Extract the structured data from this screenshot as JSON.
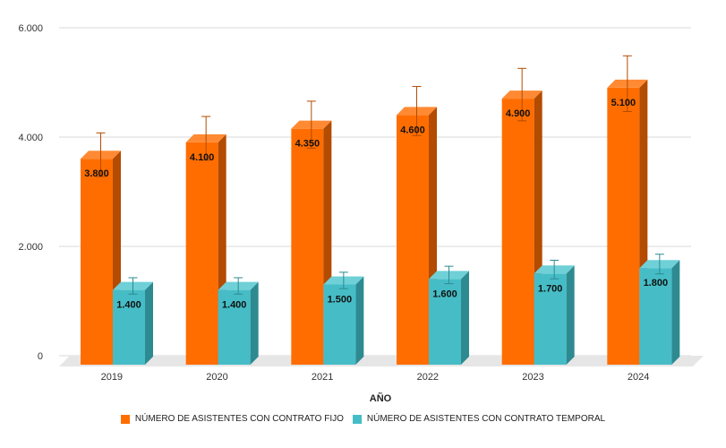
{
  "chart_data": {
    "type": "bar",
    "categories": [
      "2019",
      "2020",
      "2021",
      "2022",
      "2023",
      "2024"
    ],
    "series": [
      {
        "name": "NÚMERO DE ASISTENTES CON CONTRATO FIJO",
        "values": [
          3800,
          4100,
          4350,
          4600,
          4900,
          5100
        ],
        "labels": [
          "3.800",
          "4.100",
          "4.350",
          "4.600",
          "4.900",
          "5.100"
        ],
        "error": [
          400,
          400,
          430,
          450,
          480,
          510
        ],
        "color": "#ff6d01",
        "side_color": "#b34b00",
        "top_color": "#ff8a33"
      },
      {
        "name": "NÚMERO DE ASISTENTES CON CONTRATO TEMPORAL",
        "values": [
          1400,
          1400,
          1500,
          1600,
          1700,
          1800
        ],
        "labels": [
          "1.400",
          "1.400",
          "1.500",
          "1.600",
          "1.700",
          "1.800"
        ],
        "error": [
          150,
          150,
          150,
          160,
          170,
          180
        ],
        "color": "#46bdc6",
        "side_color": "#2e8a91",
        "top_color": "#6fd0d7"
      }
    ],
    "xlabel": "AÑO",
    "ylabel": "",
    "ylim": [
      0,
      6000
    ],
    "yticks": [
      {
        "value": 0,
        "label": "0"
      },
      {
        "value": 2000,
        "label": "2.000"
      },
      {
        "value": 4000,
        "label": "4.000"
      },
      {
        "value": 6000,
        "label": "6.000"
      }
    ],
    "grid": true,
    "legend": "bottom",
    "error_bar_color": "#b34b00"
  }
}
